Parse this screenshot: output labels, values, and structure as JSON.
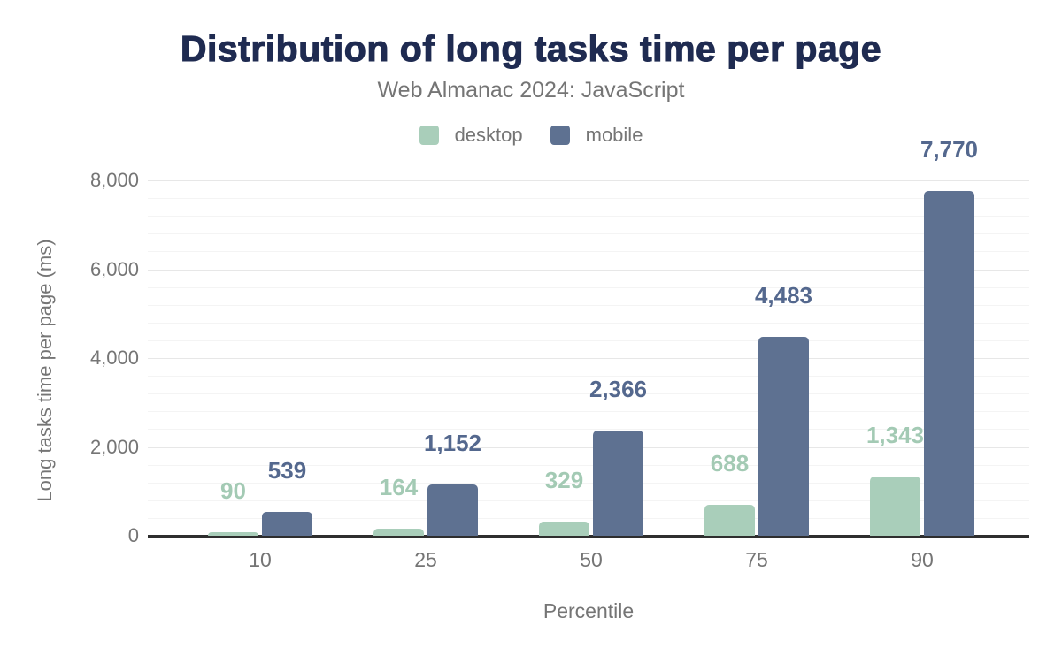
{
  "chart_data": {
    "type": "bar",
    "title": "Distribution of long tasks time per page",
    "subtitle": "Web Almanac 2024: JavaScript",
    "xlabel": "Percentile",
    "ylabel": "Long tasks time per page (ms)",
    "categories": [
      "10",
      "25",
      "50",
      "75",
      "90"
    ],
    "series": [
      {
        "name": "desktop",
        "color": "#a9ceba",
        "label_color": "#a3cab4",
        "values": [
          90,
          164,
          329,
          688,
          1343
        ],
        "labels": [
          "90",
          "164",
          "329",
          "688",
          "1,343"
        ]
      },
      {
        "name": "mobile",
        "color": "#5e7191",
        "label_color": "#54688e",
        "values": [
          539,
          1152,
          2366,
          4483,
          7770
        ],
        "labels": [
          "539",
          "1,152",
          "2,366",
          "4,483",
          "7,770"
        ]
      }
    ],
    "ylim": [
      0,
      8000
    ],
    "y_major_ticks": [
      0,
      2000,
      4000,
      6000,
      8000
    ],
    "y_tick_labels": [
      "0",
      "2,000",
      "4,000",
      "6,000",
      "8,000"
    ],
    "y_minor_step": 400,
    "grid": true,
    "legend_position": "top"
  },
  "colors": {
    "title_text": "#1f2b51",
    "muted_text": "#757575",
    "axis_line": "#2e2e2e",
    "major_grid": "#e7e7e7",
    "minor_grid": "#f4f4f4",
    "background": "#ffffff"
  }
}
